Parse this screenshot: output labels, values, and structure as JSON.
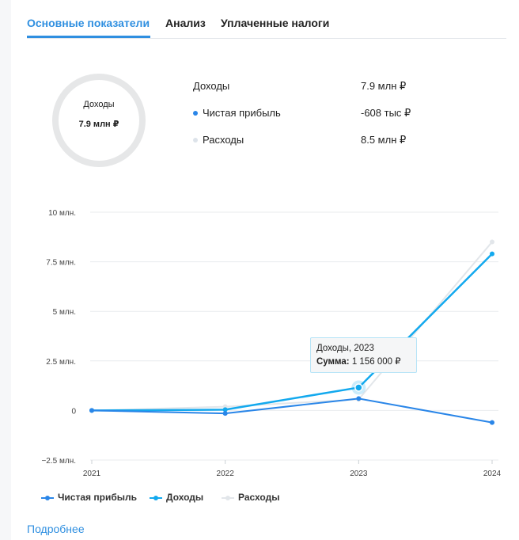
{
  "tabs": [
    {
      "label": "Основные показатели",
      "active": true
    },
    {
      "label": "Анализ",
      "active": false
    },
    {
      "label": "Уплаченные налоги",
      "active": false
    }
  ],
  "donut": {
    "label": "Доходы",
    "value": "7.9 млн ₽"
  },
  "summary": [
    {
      "label": "Доходы",
      "value": "7.9 млн ₽",
      "dot": null
    },
    {
      "label": "Чистая прибыль",
      "value": "-608 тыс ₽",
      "dot": "#2a86e8"
    },
    {
      "label": "Расходы",
      "value": "8.5 млн ₽",
      "dot": "#dde3ea"
    }
  ],
  "tooltip": {
    "title": "Доходы, 2023",
    "sum_label": "Сумма:",
    "sum_value": "1 156 000 ₽"
  },
  "link": {
    "label": "Подробнее"
  },
  "chart_data": {
    "type": "line",
    "x": [
      "2021",
      "2022",
      "2023",
      "2024"
    ],
    "ytick_labels": [
      "10 млн.",
      "7.5 млн.",
      "5 млн.",
      "2.5 млн.",
      "0",
      "−2.5 млн."
    ],
    "yticks": [
      10000000,
      7500000,
      5000000,
      2500000,
      0,
      -2500000
    ],
    "ylim": [
      -2500000,
      10000000
    ],
    "grid": true,
    "legend_position": "bottom-left",
    "highlight": {
      "series": "Доходы",
      "x": "2023"
    },
    "series": [
      {
        "name": "Чистая прибыль",
        "color": "#2a86e8",
        "values": [
          0,
          -150000,
          600000,
          -608000
        ]
      },
      {
        "name": "Доходы",
        "color": "#13a9ee",
        "values": [
          0,
          40000,
          1156000,
          7900000
        ]
      },
      {
        "name": "Расходы",
        "color": "#e2e6ea",
        "values": [
          0,
          190000,
          560000,
          8500000
        ]
      }
    ]
  }
}
